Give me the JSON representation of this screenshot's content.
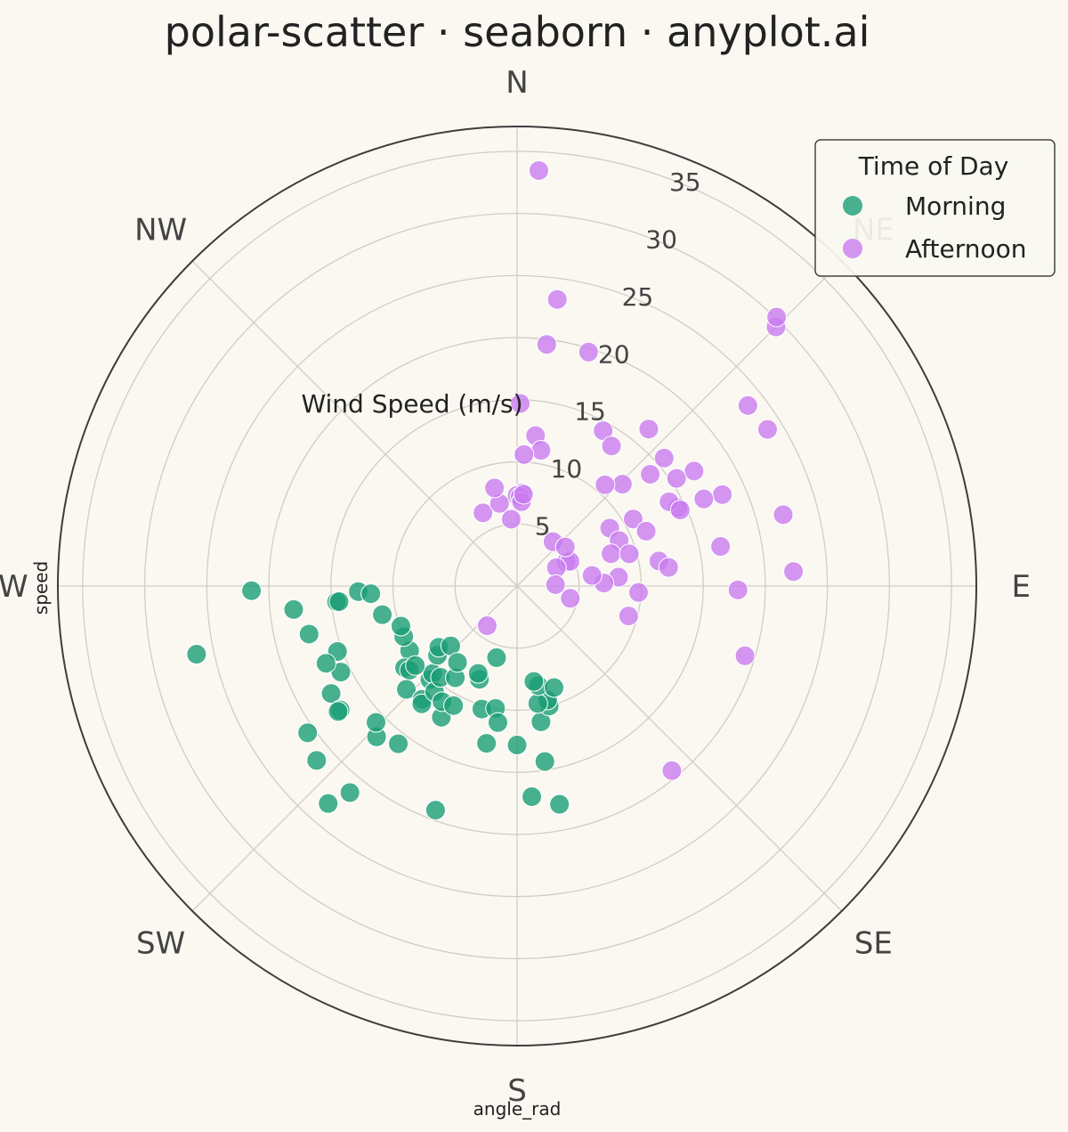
{
  "chart_data": {
    "type": "scatter",
    "projection": "polar",
    "theta_zero": "N",
    "theta_direction": "clockwise",
    "title": "polar-scatter · seaborn · anyplot.ai",
    "xlabel": "angle_rad",
    "ylabel": "speed",
    "radial_label": "Wind Speed (m/s)",
    "rlim": [
      0,
      37
    ],
    "radial_ticks": [
      "5",
      "10",
      "15",
      "20",
      "25",
      "30",
      "35"
    ],
    "angular_ticks": [
      {
        "deg": 0,
        "label": "N"
      },
      {
        "deg": 45,
        "label": "NE"
      },
      {
        "deg": 90,
        "label": "E"
      },
      {
        "deg": 135,
        "label": "SE"
      },
      {
        "deg": 180,
        "label": "S"
      },
      {
        "deg": 225,
        "label": "SW"
      },
      {
        "deg": 270,
        "label": "W"
      },
      {
        "deg": 315,
        "label": "NW"
      }
    ],
    "grid": true,
    "legend": {
      "title": "Time of Day",
      "position": "top-right"
    },
    "series": [
      {
        "name": "Morning",
        "color": "#1A9E76",
        "points": [
          [
            200,
            19.2
          ],
          [
            176,
            17.0
          ],
          [
            258,
            26.4
          ],
          [
            269,
            21.4
          ],
          [
            265,
            14.6
          ],
          [
            268,
            12.8
          ],
          [
            250,
            15.4
          ],
          [
            240,
            17.3
          ],
          [
            235,
            17.4
          ],
          [
            235,
            17.6
          ],
          [
            217,
            15.9
          ],
          [
            210,
            12.2
          ],
          [
            223,
            10.3
          ],
          [
            224,
            9.8
          ],
          [
            229,
            8.5
          ],
          [
            232,
            8.0
          ],
          [
            239,
            10.1
          ],
          [
            234,
            11.2
          ],
          [
            246,
            10.0
          ],
          [
            232,
            11.0
          ],
          [
            227,
            12.2
          ],
          [
            220,
            11.9
          ],
          [
            228,
            7.2
          ],
          [
            232,
            10.4
          ],
          [
            219,
            12.2
          ],
          [
            218,
            10.8
          ],
          [
            213,
            11.1
          ],
          [
            220,
            9.6
          ],
          [
            214,
            8.9
          ],
          [
            218,
            7.8
          ],
          [
            208,
            10.9
          ],
          [
            196,
            10.3
          ],
          [
            202,
            8.1
          ],
          [
            204,
            7.7
          ],
          [
            196,
            6.0
          ],
          [
            190,
            10.0
          ],
          [
            188,
            11.1
          ],
          [
            171,
            14.3
          ],
          [
            169,
            17.9
          ],
          [
            170,
            11.1
          ],
          [
            165,
            10.0
          ],
          [
            165,
            9.5
          ],
          [
            170,
            9.6
          ],
          [
            168,
            8.2
          ],
          [
            170,
            7.8
          ],
          [
            160,
            8.7
          ],
          [
            191,
            12.9
          ],
          [
            180,
            12.8
          ],
          [
            229,
            21.4
          ],
          [
            219,
            21.4
          ],
          [
            221,
            23.2
          ],
          [
            223,
            16.6
          ],
          [
            226,
            15.8
          ],
          [
            244,
            15.8
          ],
          [
            248,
            16.6
          ],
          [
            257,
            17.2
          ],
          [
            264,
            18.1
          ],
          [
            265,
            14.4
          ],
          [
            267,
            11.8
          ],
          [
            258,
            11.1
          ],
          [
            251,
            9.9
          ],
          [
            235,
            20.6
          ]
        ]
      },
      {
        "name": "Afternoon",
        "color": "#C97CF0",
        "points": [
          [
            3,
            33.5
          ],
          [
            8,
            23.3
          ],
          [
            7,
            19.6
          ],
          [
            17,
            19.7
          ],
          [
            1,
            14.7
          ],
          [
            7,
            12.2
          ],
          [
            10,
            11.1
          ],
          [
            3,
            10.6
          ],
          [
            29,
            14.3
          ],
          [
            34,
            13.6
          ],
          [
            40,
            16.5
          ],
          [
            49,
            15.7
          ],
          [
            45,
            29.5
          ],
          [
            44,
            30.1
          ],
          [
            52,
            23.6
          ],
          [
            58,
            23.8
          ],
          [
            66,
            18.1
          ],
          [
            75,
            22.2
          ],
          [
            87,
            22.3
          ],
          [
            91,
            17.8
          ],
          [
            107,
            19.2
          ],
          [
            79,
            16.7
          ],
          [
            65,
            16.6
          ],
          [
            57,
            17.0
          ],
          [
            64,
            14.4
          ],
          [
            61,
            14.0
          ],
          [
            56,
            15.5
          ],
          [
            65,
            14.5
          ],
          [
            46,
            11.8
          ],
          [
            41,
            10.8
          ],
          [
            50,
            14.0
          ],
          [
            58,
            8.8
          ],
          [
            66,
            9.0
          ],
          [
            71,
            8.0
          ],
          [
            74,
            9.4
          ],
          [
            80,
            11.6
          ],
          [
            83,
            12.3
          ],
          [
            93,
            9.8
          ],
          [
            85,
            8.2
          ],
          [
            88,
            7.0
          ],
          [
            82,
            6.1
          ],
          [
            105,
            9.3
          ],
          [
            103,
            4.4
          ],
          [
            64,
            4.4
          ],
          [
            65,
            4.7
          ],
          [
            65,
            3.5
          ],
          [
            39,
            4.6
          ],
          [
            88,
            3.1
          ],
          [
            51,
            5.0
          ],
          [
            60,
            10.8
          ],
          [
            67,
            11.3
          ],
          [
            3,
            7.5
          ],
          [
            0,
            7.3
          ],
          [
            355,
            5.4
          ],
          [
            335,
            6.5
          ],
          [
            348,
            6.8
          ],
          [
            347,
            8.1
          ],
          [
            2,
            7.2
          ],
          [
            3,
            6.8
          ],
          [
            4,
            7.4
          ],
          [
            140,
            19.4
          ],
          [
            217,
            4.0
          ]
        ]
      }
    ]
  }
}
